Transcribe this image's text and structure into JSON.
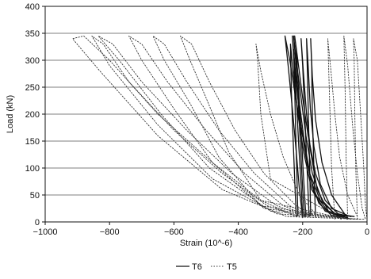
{
  "chart_data": {
    "type": "line",
    "title": "",
    "xlabel": "Strain (10^-6)",
    "ylabel": "Load (kN)",
    "xlim": [
      -1000,
      0
    ],
    "ylim": [
      0,
      400
    ],
    "x_ticks": [
      -1000,
      -800,
      -600,
      -400,
      -200,
      0
    ],
    "x_tick_labels": [
      "−1000",
      "−800",
      "−600",
      "−400",
      "−200",
      "0"
    ],
    "y_ticks": [
      0,
      50,
      100,
      150,
      200,
      250,
      300,
      350,
      400
    ],
    "y_tick_labels": [
      "0",
      "50",
      "100",
      "150",
      "200",
      "250",
      "300",
      "350",
      "400"
    ],
    "grid": "horizontal",
    "legend_position": "bottom-center",
    "series": [
      {
        "name": "T6",
        "style": "solid",
        "color": "#111111",
        "loops": [
          [
            [
              -195,
              10
            ],
            [
              -200,
              60
            ],
            [
              -205,
              120
            ],
            [
              -210,
              180
            ],
            [
              -215,
              240
            ],
            [
              -222,
              300
            ],
            [
              -228,
              345
            ],
            [
              -220,
              300
            ],
            [
              -205,
              230
            ],
            [
              -190,
              160
            ],
            [
              -170,
              90
            ],
            [
              -140,
              40
            ],
            [
              -100,
              15
            ],
            [
              -60,
              10
            ]
          ],
          [
            [
              -200,
              10
            ],
            [
              -205,
              70
            ],
            [
              -212,
              140
            ],
            [
              -218,
              210
            ],
            [
              -225,
              280
            ],
            [
              -232,
              345
            ],
            [
              -225,
              290
            ],
            [
              -210,
              220
            ],
            [
              -195,
              150
            ],
            [
              -175,
              80
            ],
            [
              -150,
              35
            ],
            [
              -110,
              12
            ],
            [
              -60,
              8
            ]
          ],
          [
            [
              -180,
              10
            ],
            [
              -185,
              80
            ],
            [
              -190,
              150
            ],
            [
              -195,
              220
            ],
            [
              -200,
              290
            ],
            [
              -205,
              340
            ],
            [
              -198,
              280
            ],
            [
              -188,
              200
            ],
            [
              -175,
              130
            ],
            [
              -155,
              60
            ],
            [
              -120,
              20
            ],
            [
              -70,
              10
            ]
          ],
          [
            [
              -190,
              10
            ],
            [
              -198,
              90
            ],
            [
              -205,
              170
            ],
            [
              -213,
              250
            ],
            [
              -220,
              320
            ],
            [
              -225,
              345
            ],
            [
              -215,
              300
            ],
            [
              -200,
              230
            ],
            [
              -183,
              160
            ],
            [
              -160,
              90
            ],
            [
              -130,
              40
            ],
            [
              -90,
              15
            ],
            [
              -50,
              10
            ]
          ],
          [
            [
              -200,
              8
            ],
            [
              -210,
              60
            ],
            [
              -220,
              130
            ],
            [
              -232,
              210
            ],
            [
              -245,
              290
            ],
            [
              -255,
              345
            ],
            [
              -240,
              300
            ],
            [
              -222,
              230
            ],
            [
              -200,
              160
            ],
            [
              -178,
              90
            ],
            [
              -145,
              40
            ],
            [
              -100,
              15
            ],
            [
              -40,
              10
            ]
          ],
          [
            [
              -175,
              12
            ],
            [
              -178,
              100
            ],
            [
              -182,
              190
            ],
            [
              -185,
              270
            ],
            [
              -188,
              340
            ],
            [
              -183,
              290
            ],
            [
              -176,
              210
            ],
            [
              -165,
              140
            ],
            [
              -145,
              70
            ],
            [
              -110,
              25
            ],
            [
              -60,
              12
            ]
          ],
          [
            [
              -220,
              10
            ],
            [
              -225,
              80
            ],
            [
              -230,
              160
            ],
            [
              -235,
              240
            ],
            [
              -238,
              330
            ],
            [
              -230,
              280
            ],
            [
              -215,
              200
            ],
            [
              -197,
              130
            ],
            [
              -172,
              60
            ],
            [
              -130,
              20
            ],
            [
              -80,
              10
            ]
          ],
          [
            [
              -215,
              12
            ],
            [
              -218,
              90
            ],
            [
              -222,
              170
            ],
            [
              -225,
              250
            ],
            [
              -228,
              320
            ],
            [
              -222,
              270
            ],
            [
              -208,
              190
            ],
            [
              -190,
              120
            ],
            [
              -165,
              55
            ],
            [
              -120,
              18
            ]
          ],
          [
            [
              -160,
              10
            ],
            [
              -165,
              100
            ],
            [
              -170,
              200
            ],
            [
              -172,
              290
            ],
            [
              -175,
              340
            ],
            [
              -170,
              270
            ],
            [
              -160,
              190
            ],
            [
              -140,
              110
            ],
            [
              -110,
              50
            ],
            [
              -70,
              15
            ]
          ]
        ]
      },
      {
        "name": "T5",
        "style": "dotted",
        "color": "#333333",
        "loops": [
          [
            [
              -10,
              5
            ],
            [
              -250,
              10
            ],
            [
              -450,
              60
            ],
            [
              -650,
              160
            ],
            [
              -830,
              280
            ],
            [
              -915,
              340
            ],
            [
              -880,
              345
            ],
            [
              -800,
              300
            ],
            [
              -650,
              200
            ],
            [
              -480,
              110
            ],
            [
              -330,
              40
            ],
            [
              -220,
              10
            ]
          ],
          [
            [
              -20,
              5
            ],
            [
              -280,
              15
            ],
            [
              -480,
              80
            ],
            [
              -650,
              180
            ],
            [
              -800,
              290
            ],
            [
              -855,
              345
            ],
            [
              -820,
              330
            ],
            [
              -740,
              260
            ],
            [
              -600,
              170
            ],
            [
              -450,
              90
            ],
            [
              -310,
              30
            ],
            [
              -210,
              10
            ]
          ],
          [
            [
              -30,
              5
            ],
            [
              -300,
              20
            ],
            [
              -490,
              100
            ],
            [
              -640,
              200
            ],
            [
              -770,
              300
            ],
            [
              -835,
              345
            ],
            [
              -790,
              330
            ],
            [
              -700,
              260
            ],
            [
              -560,
              170
            ],
            [
              -420,
              90
            ],
            [
              -280,
              30
            ],
            [
              -190,
              10
            ]
          ],
          [
            [
              -40,
              5
            ],
            [
              -320,
              25
            ],
            [
              -480,
              110
            ],
            [
              -600,
              210
            ],
            [
              -700,
              300
            ],
            [
              -740,
              345
            ],
            [
              -700,
              330
            ],
            [
              -620,
              260
            ],
            [
              -500,
              170
            ],
            [
              -380,
              90
            ],
            [
              -260,
              30
            ],
            [
              -180,
              10
            ]
          ],
          [
            [
              -50,
              5
            ],
            [
              -330,
              30
            ],
            [
              -460,
              120
            ],
            [
              -550,
              220
            ],
            [
              -630,
              300
            ],
            [
              -665,
              345
            ],
            [
              -630,
              330
            ],
            [
              -560,
              260
            ],
            [
              -460,
              170
            ],
            [
              -350,
              90
            ],
            [
              -240,
              30
            ],
            [
              -170,
              10
            ]
          ],
          [
            [
              -60,
              5
            ],
            [
              -330,
              40
            ],
            [
              -430,
              130
            ],
            [
              -500,
              230
            ],
            [
              -550,
              300
            ],
            [
              -580,
              345
            ],
            [
              -545,
              330
            ],
            [
              -490,
              260
            ],
            [
              -410,
              170
            ],
            [
              -320,
              90
            ],
            [
              -220,
              30
            ],
            [
              -160,
              10
            ]
          ],
          [
            [
              -80,
              5
            ],
            [
              -300,
              80
            ],
            [
              -330,
              200
            ],
            [
              -340,
              300
            ],
            [
              -345,
              330
            ],
            [
              -330,
              280
            ],
            [
              -300,
              200
            ],
            [
              -260,
              120
            ],
            [
              -210,
              50
            ],
            [
              -160,
              15
            ]
          ],
          [
            [
              -100,
              5
            ],
            [
              -110,
              100
            ],
            [
              -115,
              200
            ],
            [
              -120,
              300
            ],
            [
              -122,
              340
            ],
            [
              -112,
              280
            ],
            [
              -100,
              200
            ],
            [
              -85,
              120
            ],
            [
              -60,
              50
            ],
            [
              -30,
              10
            ]
          ],
          [
            [
              -30,
              5
            ],
            [
              -35,
              100
            ],
            [
              -38,
              200
            ],
            [
              -40,
              300
            ],
            [
              -42,
              340
            ],
            [
              -30,
              300
            ],
            [
              -20,
              200
            ],
            [
              -10,
              100
            ],
            [
              -5,
              30
            ],
            [
              0,
              5
            ]
          ],
          [
            [
              -60,
              5
            ],
            [
              -65,
              120
            ],
            [
              -68,
              240
            ],
            [
              -72,
              345
            ],
            [
              -60,
              290
            ],
            [
              -45,
              180
            ],
            [
              -30,
              90
            ],
            [
              -15,
              25
            ],
            [
              -5,
              5
            ]
          ]
        ]
      }
    ]
  }
}
